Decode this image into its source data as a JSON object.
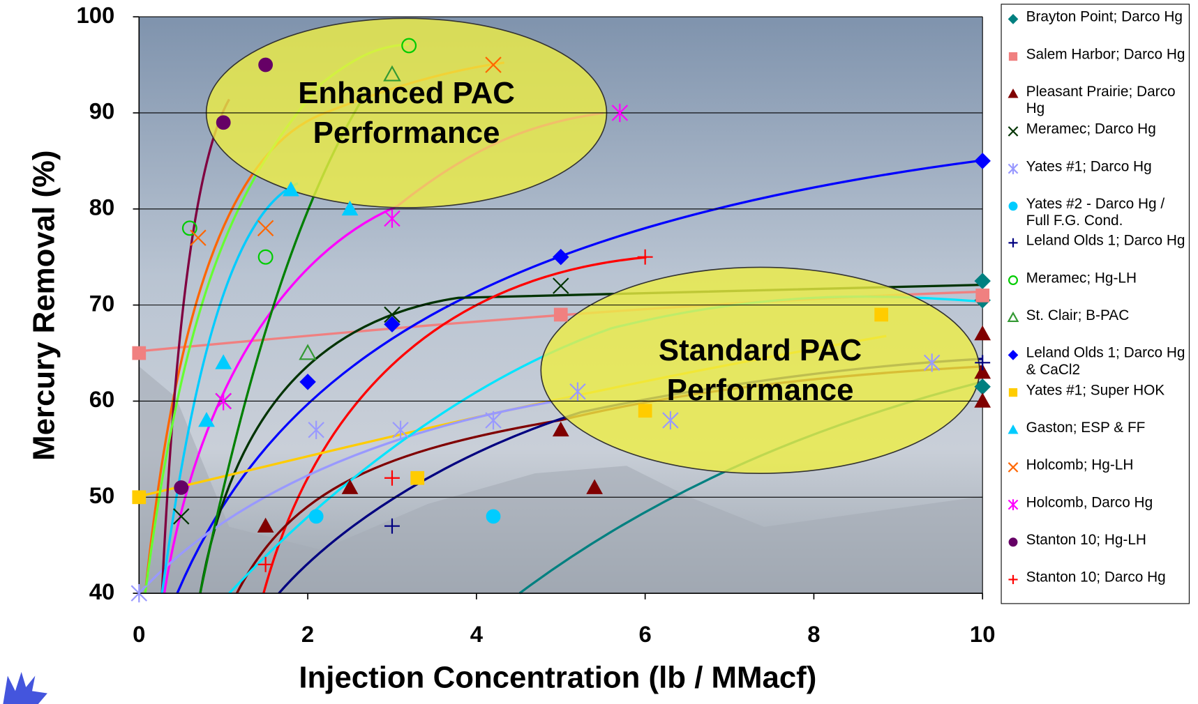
{
  "chart_data": {
    "type": "scatter",
    "x_label": "Injection Concentration (lb / MMacf)",
    "y_label": "Mercury Removal (%)",
    "xlim": [
      0,
      10
    ],
    "xticks": [
      0,
      2,
      4,
      6,
      8,
      10
    ],
    "ylim": [
      40,
      100
    ],
    "yticks": [
      40,
      50,
      60,
      70,
      80,
      90,
      100
    ],
    "grid": true,
    "legend": "right",
    "annotations": [
      "Enhanced PAC Performance",
      "Standard PAC Performance"
    ],
    "series": [
      {
        "name": "Brayton Point; Darco Hg",
        "color": "#008080",
        "marker": "diamond",
        "x": [
          10,
          10,
          10
        ],
        "values": [
          72.5,
          70.5,
          61.5
        ]
      },
      {
        "name": "Salem Harbor; Darco Hg",
        "color": "#f08080",
        "marker": "square",
        "x": [
          0,
          5,
          10
        ],
        "values": [
          65,
          69,
          71
        ]
      },
      {
        "name": "Pleasant Prairie; Darco Hg",
        "color": "#800000",
        "marker": "triangle",
        "x": [
          1.5,
          2.5,
          5,
          5.4,
          10,
          10,
          10
        ],
        "values": [
          47,
          51,
          57,
          51,
          67,
          63,
          60
        ]
      },
      {
        "name": "Meramec; Darco Hg",
        "color": "#003300",
        "marker": "x",
        "x": [
          0.5,
          1,
          3,
          5
        ],
        "values": [
          48,
          60,
          69,
          72
        ]
      },
      {
        "name": "Yates #1; Darco Hg",
        "color": "#9999ff",
        "marker": "asterisk",
        "x": [
          0,
          2.1,
          3.1,
          4.2,
          5.2,
          6.3,
          9.4
        ],
        "values": [
          40,
          57,
          57,
          58,
          61,
          58,
          64
        ]
      },
      {
        "name": "Yates #2 - Darco Hg / Full F.G. Cond.",
        "color": "#00ccff",
        "marker": "circle",
        "x": [
          2.1,
          4.2
        ],
        "values": [
          48,
          48
        ]
      },
      {
        "name": "Leland Olds 1; Darco Hg",
        "color": "#000080",
        "marker": "plus",
        "x": [
          3,
          10
        ],
        "values": [
          47,
          64
        ]
      },
      {
        "name": "Meramec; Hg-LH",
        "color": "#00cc00",
        "marker": "open-circle",
        "x": [
          0.6,
          1.5,
          3.2
        ],
        "values": [
          78,
          75,
          97
        ]
      },
      {
        "name": "St. Clair; B-PAC",
        "color": "#339933",
        "marker": "open-triangle",
        "x": [
          2,
          3
        ],
        "values": [
          65,
          94
        ]
      },
      {
        "name": "Leland Olds 1; Darco Hg & CaCl2",
        "color": "#0000ff",
        "marker": "diamond",
        "x": [
          2,
          3,
          5,
          10
        ],
        "values": [
          62,
          68,
          75,
          85
        ]
      },
      {
        "name": "Yates #1; Super HOK",
        "color": "#ffcc00",
        "marker": "square",
        "x": [
          0,
          3.3,
          6,
          8.8
        ],
        "values": [
          50,
          52,
          59,
          69
        ]
      },
      {
        "name": "Gaston; ESP & FF",
        "color": "#00ccff",
        "marker": "triangle",
        "x": [
          0.8,
          1,
          1.8,
          2.5
        ],
        "values": [
          58,
          64,
          82,
          80
        ]
      },
      {
        "name": "Holcomb; Hg-LH",
        "color": "#ff6600",
        "marker": "x",
        "x": [
          0.7,
          1.5,
          4.2
        ],
        "values": [
          77,
          78,
          95
        ]
      },
      {
        "name": "Holcomb, Darco Hg",
        "color": "#ff00ff",
        "marker": "asterisk",
        "x": [
          1,
          3,
          5.7
        ],
        "values": [
          60,
          79,
          90
        ]
      },
      {
        "name": "Stanton 10; Hg-LH",
        "color": "#660066",
        "marker": "circle",
        "x": [
          0.5,
          1,
          1.5
        ],
        "values": [
          51,
          89,
          95
        ]
      },
      {
        "name": "Stanton 10; Darco Hg",
        "color": "#ff0000",
        "marker": "plus",
        "x": [
          1.5,
          3,
          6
        ],
        "values": [
          43,
          52,
          75
        ]
      }
    ]
  }
}
